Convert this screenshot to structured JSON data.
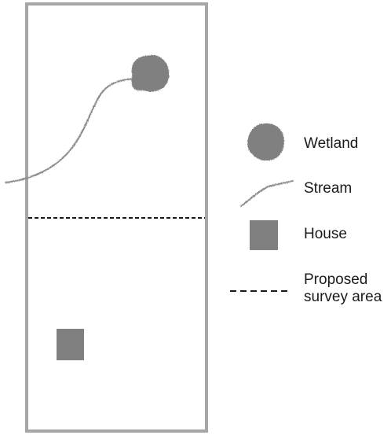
{
  "legend": {
    "wetland_label": "Wetland",
    "stream_label": "Stream",
    "house_label": "House",
    "survey_label_line1": "Proposed",
    "survey_label_line2": "survey area"
  },
  "colors": {
    "boundary": "#a6a6a6",
    "feature_fill": "#808080",
    "survey_line": "#1a1a1a",
    "background": "#ffffff"
  },
  "icons": {
    "wetland": "irregular-blob",
    "stream": "wavy-line",
    "house": "square",
    "survey_area": "dashed-line"
  }
}
